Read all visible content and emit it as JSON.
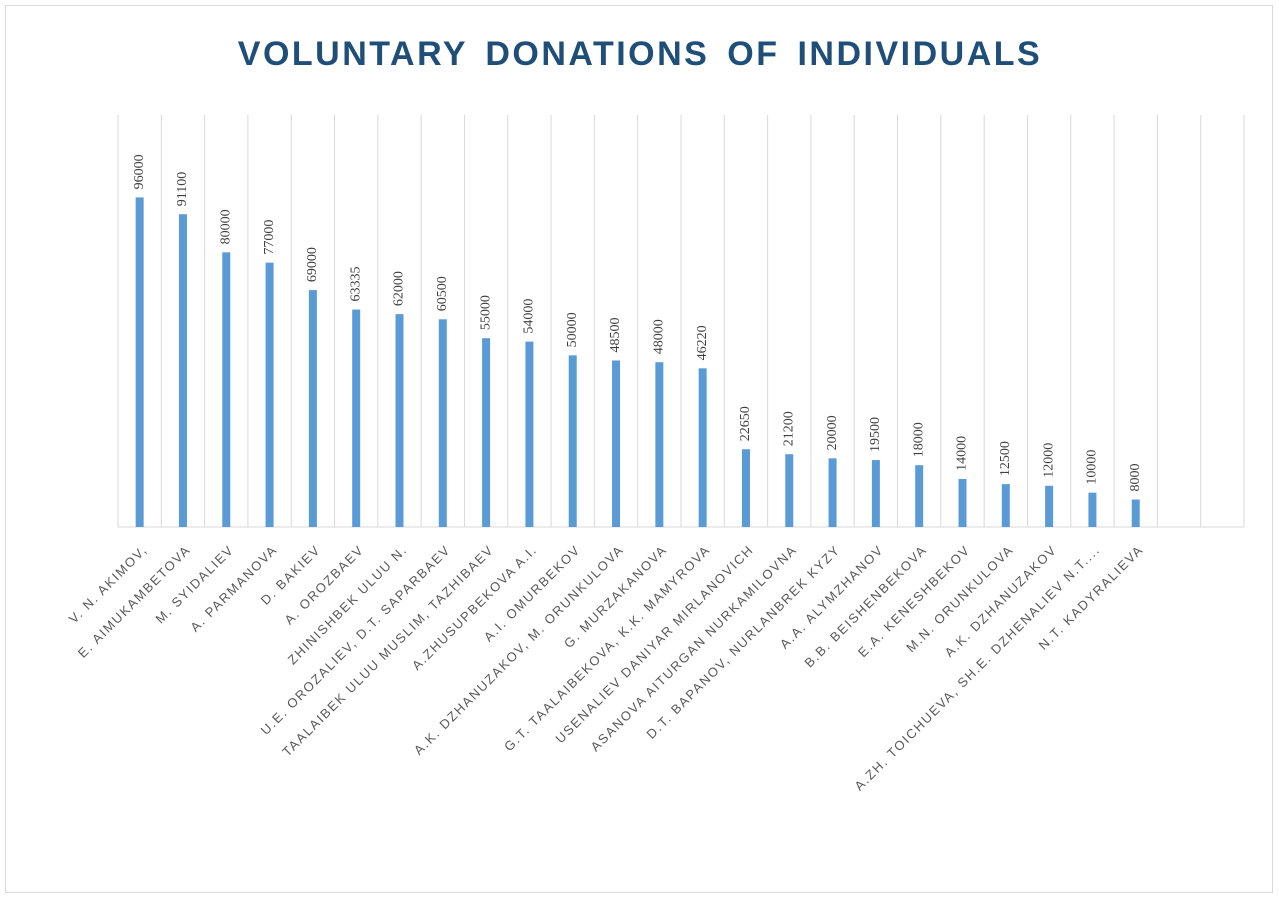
{
  "chart_data": {
    "type": "bar",
    "title": "VOLUNTARY DONATIONS OF INDIVIDUALS",
    "categories": [
      "V. N. AKIMOV,",
      "E. AIMUKAMBETOVA",
      "M. SYIDALIEV",
      "A. PARMANOVA",
      "D. BAKIEV",
      "A. OROZBAEV",
      "ZHINISHBEK ULUU N.",
      "U.E. OROZALIEV, D.T. SAPARBAEV",
      "TAALAIBEK ULUU MUSLIM, TAZHIBAEV",
      "A.ZHUSUPBEKOVA A.I.",
      "A.I. OMURBEKOV",
      "A.K. DZHANUZAKOV, M. ORUNKULOVA",
      "G. MURZAKANOVA",
      "G.T. TAALAIBEKOVA, K.K. MAMYROVA",
      "USENALIEV DANIYAR MIRLANOVICH",
      "ASANOVA AITURGAN NURKAMILOVNA",
      "D.T. BAPANOV, NURLANBREK KYZY",
      "A.A. ALYMZHANOV",
      "B.B. BEISHENBEKOVA",
      "E.A. KENESHBEKOV",
      "M.N. ORUNKULOVA",
      "A.K. DZHANUZAKOV",
      "A.ZH. TOICHUEVA, SH.E. DZHENALIEV N.T....",
      "N.T. KADYRALIEVA",
      null,
      null
    ],
    "values": [
      96000,
      91100,
      80000,
      77000,
      69000,
      63335,
      62000,
      60500,
      55000,
      54000,
      50000,
      48500,
      48000,
      46220,
      22650,
      21200,
      20000,
      19500,
      18000,
      14000,
      12500,
      12000,
      10000,
      8000,
      null,
      null
    ],
    "color": "#5b9bd5",
    "ylim": [
      0,
      120000
    ]
  }
}
